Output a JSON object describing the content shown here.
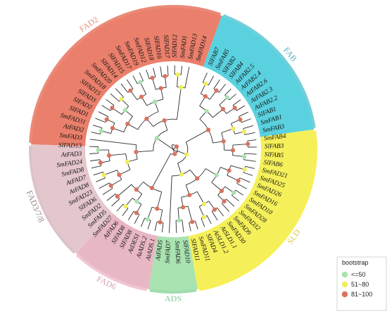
{
  "clades": [
    {
      "name": "FAB",
      "color": "#5ad1df",
      "arc": "#72cfd8",
      "label_color": "#5ab4c8",
      "start": -70,
      "end": -8
    },
    {
      "name": "SLD",
      "color": "#f5f05a",
      "arc": "#f7ef55",
      "label_color": "#d8c84a",
      "start": -8,
      "end": 80
    },
    {
      "name": "ADS",
      "color": "#a9e3b2",
      "arc": "#9fdcae",
      "label_color": "#86c99a",
      "start": 80,
      "end": 100
    },
    {
      "name": "FAD6",
      "color": "#e8b7c4",
      "arc": "#f0c6d2",
      "label_color": "#d7a3b2",
      "start": 100,
      "end": 133
    },
    {
      "name": "FAD3/7/8",
      "color": "#e4c7cd",
      "arc": "#dcc3c9",
      "label_color": "#9a8a8e",
      "start": 133,
      "end": 182
    },
    {
      "name": "FAD2",
      "color": "#ea7f6b",
      "arc": "#ea8a78",
      "label_color": "#e58f7f",
      "start": 182,
      "end": 290
    }
  ],
  "leaves": [
    "SlFAB7",
    "SmFAB5",
    "SlFAB2",
    "SlFAB4",
    "AtFAB2.5",
    "AtFAB2.4",
    "AtFAB2.6",
    "AtFAB2.3",
    "AtFAB2.2",
    "SlFAB1",
    "SmFAB1",
    "SmFAB3",
    "SmFAB4",
    "SlFAB3",
    "SlFAB5",
    "SlFAB6",
    "SmFAD21",
    "SmFAD25",
    "SmFAD26",
    "SmFAD16",
    "SmFAD10",
    "SmFAD28",
    "SmFAD32",
    "SmFAD9",
    "SmFAD30",
    "AtSLD1.1",
    "AtSLD1.2",
    "SlFAD4",
    "SmFAD11",
    "SlFAD11",
    "SlFAD10",
    "SmFAD6",
    "SmFAD7",
    "AtFAD5",
    "AtADS.1",
    "AtADS.2",
    "AtDES1",
    "SlFAD8",
    "SlFAD8",
    "AtFAD6",
    "SmFAD27",
    "SmFAD5",
    "SmFAD2",
    "SlFAD6",
    "SmFAD23",
    "AtFAD8",
    "AtFAD7",
    "SmFAD8",
    "SmFAD24",
    "AtFAD3",
    "SlFAD13",
    "SmFAD3",
    "AtFAD2",
    "SmFAD31",
    "SlFAD1",
    "SlFAD2",
    "SlFAD3",
    "SlFAD15",
    "SmFAD18",
    "SmFAD20",
    "SlFAD14",
    "SlFAD15",
    "SmFAD17",
    "SmFAD19",
    "SmFAD12",
    "SlFAD18",
    "SlFAD16",
    "SlFAD17",
    "SlFAD12",
    "SmFAD1",
    "SmFAD13",
    "SmFAD14"
  ],
  "legend": {
    "title": "bootstrap",
    "items": [
      {
        "label": "<=50",
        "color": "#a8e3ad"
      },
      {
        "label": "51~80",
        "color": "#eeee5a"
      },
      {
        "label": "81~100",
        "color": "#d8735f"
      }
    ]
  }
}
